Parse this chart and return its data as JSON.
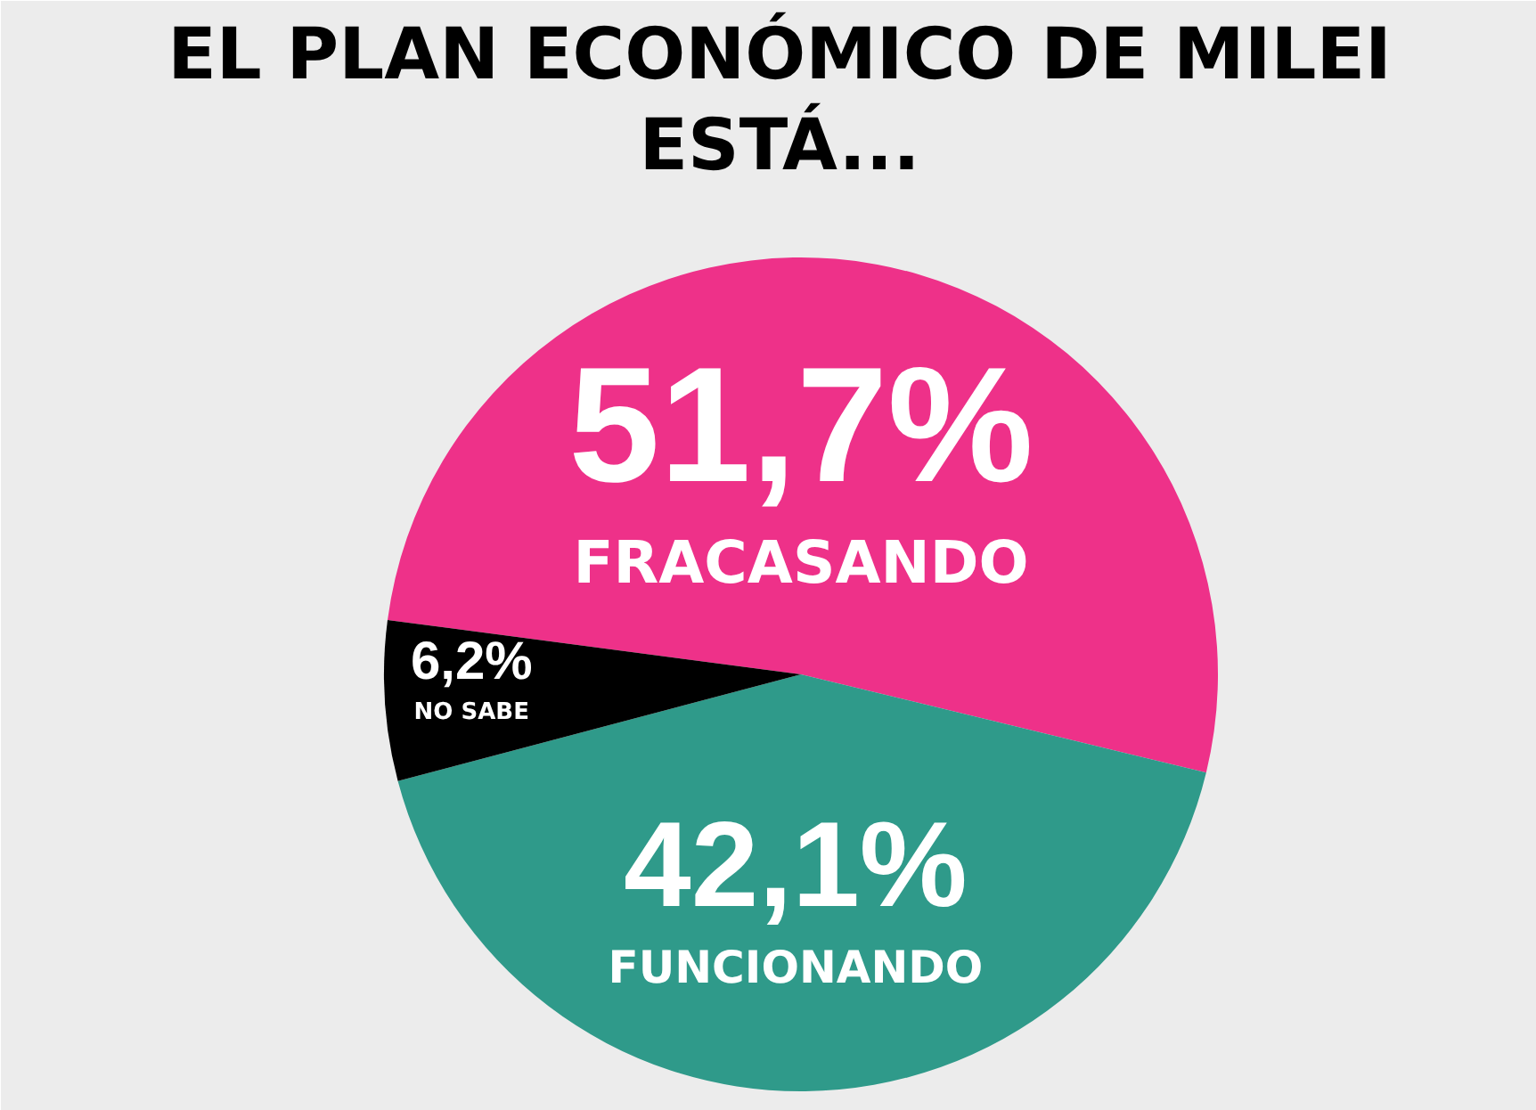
{
  "chart_data": {
    "type": "pie",
    "title": "EL PLAN ECONÓMICO DE MILEI ESTÁ...",
    "categories": [
      "FRACASANDO",
      "FUNCIONANDO",
      "NO SABE"
    ],
    "values": [
      51.7,
      42.1,
      6.2
    ],
    "colors": [
      "#ee3189",
      "#2f9a8a",
      "#000000"
    ],
    "value_labels": [
      "51,7%",
      "42,1%",
      "6,2%"
    ]
  }
}
